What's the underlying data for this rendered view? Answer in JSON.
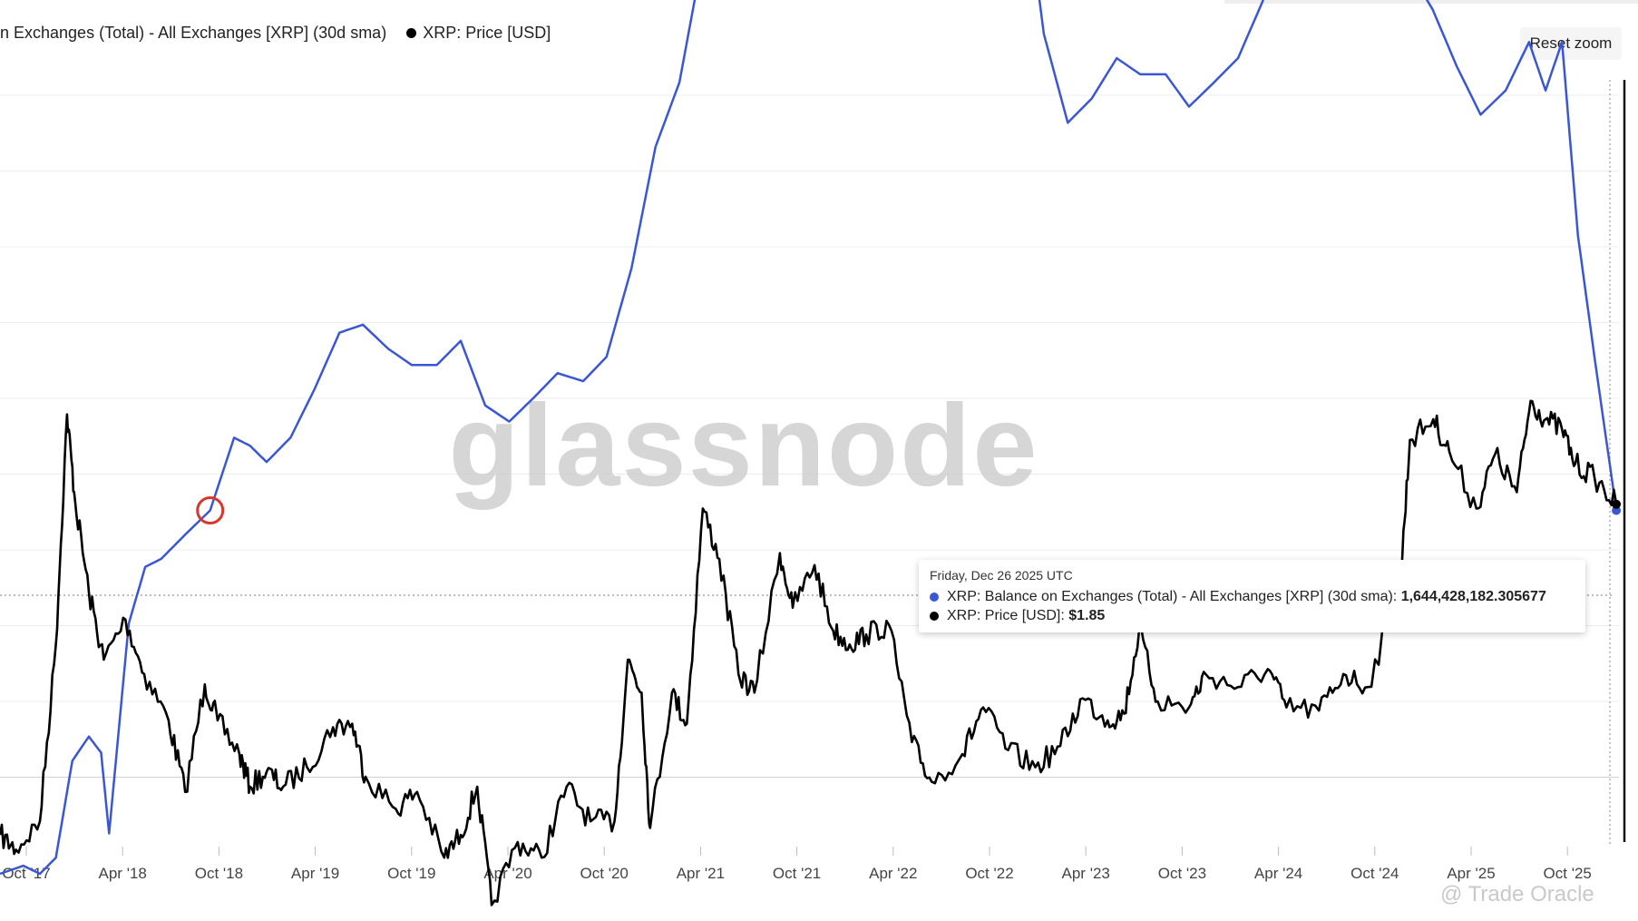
{
  "legend": {
    "series1_label": "n Exchanges (Total) - All Exchanges [XRP] (30d sma)",
    "series2_label": "XRP: Price [USD]"
  },
  "toolbar": {
    "reset_zoom_label": "Reset zoom"
  },
  "watermark": {
    "brand": "glassnode",
    "credit": "@ Trade Oracle"
  },
  "colors": {
    "balance": "#3a56d4",
    "price": "#000000",
    "highlight_circle": "#d9372b"
  },
  "tooltip": {
    "date": "Friday, Dec 26 2025 UTC",
    "series1_name": "XRP: Balance on Exchanges (Total) - All Exchanges [XRP] (30d sma):",
    "series1_value": "1,644,428,182.305677",
    "series2_name": "XRP: Price [USD]:",
    "series2_value": "$1.85"
  },
  "chart_data": {
    "type": "line",
    "x_tick_labels": [
      "Oct '17",
      "Apr '18",
      "Oct '18",
      "Apr '19",
      "Oct '19",
      "Apr '20",
      "Oct '20",
      "Apr '21",
      "Oct '21",
      "Apr '22",
      "Oct '22",
      "Apr '23",
      "Oct '23",
      "Apr '24",
      "Oct '24",
      "Apr '25",
      "Oct '25"
    ],
    "xlim": [
      "2017-09-01",
      "2025-12-31"
    ],
    "grid": true,
    "axis_labels_shown": false,
    "highlight_marker": {
      "date": "2018-10-01",
      "label": ""
    },
    "series": [
      {
        "name": "XRP: Balance on Exchanges (Total) - All Exchanges [XRP] (30d sma)",
        "axis": "left",
        "values": [
          [
            "2017-09-01",
            0.1
          ],
          [
            "2017-10-15",
            0.11
          ],
          [
            "2017-11-15",
            0.1
          ],
          [
            "2017-12-15",
            0.12
          ],
          [
            "2018-01-15",
            0.24
          ],
          [
            "2018-02-15",
            0.27
          ],
          [
            "2018-03-10",
            0.25
          ],
          [
            "2018-03-25",
            0.15
          ],
          [
            "2018-05-01",
            0.41
          ],
          [
            "2018-06-01",
            0.48
          ],
          [
            "2018-07-01",
            0.49
          ],
          [
            "2018-08-15",
            0.52
          ],
          [
            "2018-10-01",
            0.55
          ],
          [
            "2018-11-15",
            0.64
          ],
          [
            "2018-12-15",
            0.63
          ],
          [
            "2019-01-15",
            0.61
          ],
          [
            "2019-03-01",
            0.64
          ],
          [
            "2019-04-15",
            0.7
          ],
          [
            "2019-06-01",
            0.77
          ],
          [
            "2019-07-15",
            0.78
          ],
          [
            "2019-09-01",
            0.75
          ],
          [
            "2019-10-15",
            0.73
          ],
          [
            "2019-12-01",
            0.73
          ],
          [
            "2020-01-15",
            0.76
          ],
          [
            "2020-03-01",
            0.68
          ],
          [
            "2020-04-15",
            0.66
          ],
          [
            "2020-06-01",
            0.69
          ],
          [
            "2020-07-15",
            0.72
          ],
          [
            "2020-09-01",
            0.71
          ],
          [
            "2020-10-15",
            0.74
          ],
          [
            "2020-12-01",
            0.85
          ],
          [
            "2021-01-15",
            1.0
          ],
          [
            "2021-03-01",
            1.08
          ],
          [
            "2021-04-15",
            1.24
          ],
          [
            "2021-06-01",
            1.34
          ],
          [
            "2021-07-15",
            1.36
          ],
          [
            "2021-09-01",
            1.36
          ],
          [
            "2021-10-15",
            1.33
          ],
          [
            "2021-12-01",
            1.35
          ],
          [
            "2022-01-15",
            1.35
          ],
          [
            "2022-03-01",
            1.36
          ],
          [
            "2022-04-15",
            1.37
          ],
          [
            "2022-06-01",
            1.35
          ],
          [
            "2022-07-15",
            1.32
          ],
          [
            "2022-09-01",
            1.28
          ],
          [
            "2022-10-15",
            1.34
          ],
          [
            "2022-12-01",
            1.37
          ],
          [
            "2023-01-15",
            1.14
          ],
          [
            "2023-03-01",
            1.03
          ],
          [
            "2023-04-15",
            1.06
          ],
          [
            "2023-06-01",
            1.11
          ],
          [
            "2023-07-15",
            1.09
          ],
          [
            "2023-09-01",
            1.09
          ],
          [
            "2023-10-15",
            1.05
          ],
          [
            "2023-12-01",
            1.08
          ],
          [
            "2024-01-15",
            1.11
          ],
          [
            "2024-03-01",
            1.18
          ],
          [
            "2024-04-15",
            1.27
          ],
          [
            "2024-06-01",
            1.21
          ],
          [
            "2024-07-15",
            1.22
          ],
          [
            "2024-09-01",
            1.19
          ],
          [
            "2024-10-15",
            1.2
          ],
          [
            "2024-12-01",
            1.22
          ],
          [
            "2025-01-15",
            1.17
          ],
          [
            "2025-03-01",
            1.1
          ],
          [
            "2025-04-15",
            1.04
          ],
          [
            "2025-06-01",
            1.07
          ],
          [
            "2025-07-15",
            1.13
          ],
          [
            "2025-08-15",
            1.07
          ],
          [
            "2025-09-15",
            1.13
          ],
          [
            "2025-10-15",
            0.89
          ],
          [
            "2025-11-15",
            0.74
          ],
          [
            "2025-12-26",
            0.55
          ]
        ]
      },
      {
        "name": "XRP: Price [USD]",
        "axis": "right",
        "values": [
          [
            "2017-09-01",
            0.22
          ],
          [
            "2017-10-01",
            0.2
          ],
          [
            "2017-11-15",
            0.24
          ],
          [
            "2017-12-15",
            0.75
          ],
          [
            "2018-01-05",
            3.3
          ],
          [
            "2018-01-20",
            1.9
          ],
          [
            "2018-02-15",
            1.05
          ],
          [
            "2018-03-15",
            0.68
          ],
          [
            "2018-04-25",
            0.88
          ],
          [
            "2018-05-30",
            0.62
          ],
          [
            "2018-07-15",
            0.46
          ],
          [
            "2018-08-15",
            0.29
          ],
          [
            "2018-09-21",
            0.58
          ],
          [
            "2018-10-15",
            0.46
          ],
          [
            "2018-11-25",
            0.37
          ],
          [
            "2018-12-15",
            0.3
          ],
          [
            "2019-01-15",
            0.33
          ],
          [
            "2019-02-15",
            0.3
          ],
          [
            "2019-04-01",
            0.34
          ],
          [
            "2019-05-20",
            0.44
          ],
          [
            "2019-06-25",
            0.45
          ],
          [
            "2019-07-20",
            0.32
          ],
          [
            "2019-09-15",
            0.26
          ],
          [
            "2019-10-25",
            0.29
          ],
          [
            "2019-12-15",
            0.19
          ],
          [
            "2020-01-15",
            0.22
          ],
          [
            "2020-02-15",
            0.3
          ],
          [
            "2020-03-13",
            0.14
          ],
          [
            "2020-05-01",
            0.21
          ],
          [
            "2020-06-15",
            0.19
          ],
          [
            "2020-08-01",
            0.3
          ],
          [
            "2020-09-15",
            0.24
          ],
          [
            "2020-10-30",
            0.24
          ],
          [
            "2020-11-24",
            0.68
          ],
          [
            "2020-12-20",
            0.55
          ],
          [
            "2021-01-05",
            0.23
          ],
          [
            "2021-02-15",
            0.55
          ],
          [
            "2021-03-15",
            0.45
          ],
          [
            "2021-04-14",
            1.8
          ],
          [
            "2021-05-15",
            1.3
          ],
          [
            "2021-06-20",
            0.62
          ],
          [
            "2021-07-20",
            0.55
          ],
          [
            "2021-09-06",
            1.35
          ],
          [
            "2021-09-30",
            0.95
          ],
          [
            "2021-11-10",
            1.25
          ],
          [
            "2021-12-15",
            0.82
          ],
          [
            "2022-01-15",
            0.75
          ],
          [
            "2022-02-15",
            0.8
          ],
          [
            "2022-03-30",
            0.85
          ],
          [
            "2022-05-12",
            0.4
          ],
          [
            "2022-06-18",
            0.31
          ],
          [
            "2022-08-15",
            0.37
          ],
          [
            "2022-09-23",
            0.5
          ],
          [
            "2022-11-09",
            0.38
          ],
          [
            "2022-12-30",
            0.34
          ],
          [
            "2023-02-15",
            0.39
          ],
          [
            "2023-03-29",
            0.53
          ],
          [
            "2023-05-15",
            0.46
          ],
          [
            "2023-06-15",
            0.48
          ],
          [
            "2023-07-13",
            0.82
          ],
          [
            "2023-08-17",
            0.52
          ],
          [
            "2023-10-15",
            0.5
          ],
          [
            "2023-11-15",
            0.62
          ],
          [
            "2024-01-15",
            0.57
          ],
          [
            "2024-03-11",
            0.64
          ],
          [
            "2024-04-15",
            0.5
          ],
          [
            "2024-06-15",
            0.49
          ],
          [
            "2024-07-31",
            0.62
          ],
          [
            "2024-09-15",
            0.57
          ],
          [
            "2024-11-15",
            1.1
          ],
          [
            "2024-12-03",
            2.8
          ],
          [
            "2025-01-16",
            3.2
          ],
          [
            "2025-02-15",
            2.6
          ],
          [
            "2025-04-07",
            1.8
          ],
          [
            "2025-05-12",
            2.55
          ],
          [
            "2025-06-22",
            2.0
          ],
          [
            "2025-07-18",
            3.6
          ],
          [
            "2025-08-15",
            3.2
          ],
          [
            "2025-09-15",
            3.0
          ],
          [
            "2025-10-10",
            2.4
          ],
          [
            "2025-11-15",
            2.2
          ],
          [
            "2025-12-26",
            1.85
          ]
        ]
      }
    ]
  }
}
